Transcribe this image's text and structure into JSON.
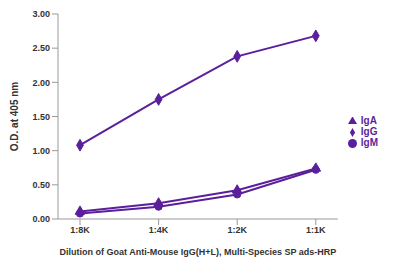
{
  "chart_data": {
    "type": "line",
    "x_label": "Dilution of Goat Anti-Mouse IgG(H+L), Multi-Species SP ads-HRP",
    "y_label": "O.D. at 405 nm",
    "categories": [
      "1:8K",
      "1:4K",
      "1:2K",
      "1:1K"
    ],
    "series": [
      {
        "name": "IgG",
        "color": "#5b1f9c",
        "marker": "diamond",
        "values": [
          1.08,
          1.75,
          2.38,
          2.68
        ]
      },
      {
        "name": "IgM",
        "color": "#5b1f9c",
        "marker": "circle",
        "values": [
          0.08,
          0.18,
          0.36,
          0.72
        ]
      },
      {
        "name": "IgA",
        "color": "#5b1f9c",
        "marker": "triangle",
        "values": [
          0.11,
          0.23,
          0.42,
          0.74
        ]
      }
    ],
    "ylim": [
      0,
      3
    ],
    "yticks": [
      {
        "value": 0,
        "label": "0.00"
      },
      {
        "value": 0.5,
        "label": "0.50"
      },
      {
        "value": 1,
        "label": "1.00"
      },
      {
        "value": 1.5,
        "label": "1.50"
      },
      {
        "value": 2,
        "label": "2.00"
      },
      {
        "value": 2.5,
        "label": "2.50"
      },
      {
        "value": 3,
        "label": "3.00"
      }
    ],
    "grid": false,
    "legend": "right"
  }
}
